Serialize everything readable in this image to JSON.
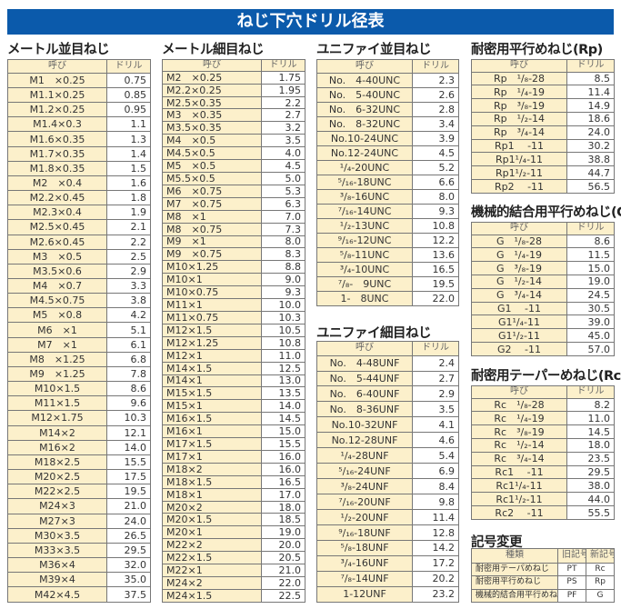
{
  "title": "ねじ下穴ドリル径表",
  "colors": {
    "title_bar": "#0b5aab",
    "name_cell": "#fcf0cb",
    "drill_cell": "#ffffff"
  },
  "tables": [
    {
      "heading": "メートル並目ねじ",
      "headers": [
        "呼び",
        "ドリル"
      ],
      "rows": [
        [
          "M1　×0.25",
          "0.75"
        ],
        [
          "M1.1×0.25",
          "0.85"
        ],
        [
          "M1.2×0.25",
          "0.95"
        ],
        [
          "M1.4×0.3",
          "1.1"
        ],
        [
          "M1.6×0.35",
          "1.3"
        ],
        [
          "M1.7×0.35",
          "1.4"
        ],
        [
          "M1.8×0.35",
          "1.5"
        ],
        [
          "M2　×0.4",
          "1.6"
        ],
        [
          "M2.2×0.45",
          "1.8"
        ],
        [
          "M2.3×0.4",
          "1.9"
        ],
        [
          "M2.5×0.45",
          "2.1"
        ],
        [
          "M2.6×0.45",
          "2.2"
        ],
        [
          "M3　×0.5",
          "2.5"
        ],
        [
          "M3.5×0.6",
          "2.9"
        ],
        [
          "M4　×0.7",
          "3.3"
        ],
        [
          "M4.5×0.75",
          "3.8"
        ],
        [
          "M5　×0.8",
          "4.2"
        ],
        [
          "M6　×1",
          "5.1"
        ],
        [
          "M7　×1",
          "6.1"
        ],
        [
          "M8　×1.25",
          "6.8"
        ],
        [
          "M9　×1.25",
          "7.8"
        ],
        [
          "M10×1.5",
          "8.6"
        ],
        [
          "M11×1.5",
          "9.6"
        ],
        [
          "M12×1.75",
          "10.3"
        ],
        [
          "M14×2",
          "12.1"
        ],
        [
          "M16×2",
          "14.0"
        ],
        [
          "M18×2.5",
          "15.5"
        ],
        [
          "M20×2.5",
          "17.5"
        ],
        [
          "M22×2.5",
          "19.5"
        ],
        [
          "M24×3",
          "21.0"
        ],
        [
          "M27×3",
          "24.0"
        ],
        [
          "M30×3.5",
          "26.5"
        ],
        [
          "M33×3.5",
          "29.5"
        ],
        [
          "M36×4",
          "32.0"
        ],
        [
          "M39×4",
          "35.0"
        ],
        [
          "M42×4.5",
          "37.5"
        ]
      ]
    },
    {
      "heading": "メートル細目ねじ",
      "headers": [
        "呼び",
        "ドリル"
      ],
      "rows": [
        [
          "M2　×0.25",
          "1.75"
        ],
        [
          "M2.2×0.25",
          "1.95"
        ],
        [
          "M2.5×0.35",
          "2.2"
        ],
        [
          "M3　×0.35",
          "2.7"
        ],
        [
          "M3.5×0.35",
          "3.2"
        ],
        [
          "M4　×0.5",
          "3.5"
        ],
        [
          "M4.5×0.5",
          "4.0"
        ],
        [
          "M5　×0.5",
          "4.5"
        ],
        [
          "M5.5×0.5",
          "5.0"
        ],
        [
          "M6　×0.75",
          "5.3"
        ],
        [
          "M7　×0.75",
          "6.3"
        ],
        [
          "M8　×1",
          "7.0"
        ],
        [
          "M8　×0.75",
          "7.3"
        ],
        [
          "M9　×1",
          "8.0"
        ],
        [
          "M9　×0.75",
          "8.3"
        ],
        [
          "M10×1.25",
          "8.8"
        ],
        [
          "M10×1",
          "9.0"
        ],
        [
          "M10×0.75",
          "9.3"
        ],
        [
          "M11×1",
          "10.0"
        ],
        [
          "M11×0.75",
          "10.3"
        ],
        [
          "M12×1.5",
          "10.5"
        ],
        [
          "M12×1.25",
          "10.8"
        ],
        [
          "M12×1",
          "11.0"
        ],
        [
          "M14×1.5",
          "12.5"
        ],
        [
          "M14×1",
          "13.0"
        ],
        [
          "M15×1.5",
          "13.5"
        ],
        [
          "M15×1",
          "14.0"
        ],
        [
          "M16×1.5",
          "14.5"
        ],
        [
          "M16×1",
          "15.0"
        ],
        [
          "M17×1.5",
          "15.5"
        ],
        [
          "M17×1",
          "16.0"
        ],
        [
          "M18×2",
          "16.0"
        ],
        [
          "M18×1.5",
          "16.5"
        ],
        [
          "M18×1",
          "17.0"
        ],
        [
          "M20×2",
          "18.0"
        ],
        [
          "M20×1.5",
          "18.5"
        ],
        [
          "M20×1",
          "19.0"
        ],
        [
          "M22×2",
          "20.0"
        ],
        [
          "M22×1.5",
          "20.5"
        ],
        [
          "M22×1",
          "21.0"
        ],
        [
          "M24×2",
          "22.0"
        ],
        [
          "M24×1.5",
          "22.5"
        ]
      ]
    },
    {
      "heading": "ユニファイ並目ねじ",
      "headers": [
        "呼び",
        "ドリル"
      ],
      "rows": [
        [
          "No.　4-40UNC",
          "2.3"
        ],
        [
          "No.　5-40UNC",
          "2.6"
        ],
        [
          "No.　6-32UNC",
          "2.8"
        ],
        [
          "No.　8-32UNC",
          "3.4"
        ],
        [
          "No.10-24UNC",
          "3.9"
        ],
        [
          "No.12-24UNC",
          "4.5"
        ],
        [
          "¹/₄-20UNC",
          "5.2"
        ],
        [
          "⁵/₁₆-18UNC",
          "6.6"
        ],
        [
          "³/₈-16UNC",
          "8.0"
        ],
        [
          "⁷/₁₆-14UNC",
          "9.3"
        ],
        [
          "¹/₂-13UNC",
          "10.8"
        ],
        [
          "⁹/₁₆-12UNC",
          "12.2"
        ],
        [
          "⁵/₈-11UNC",
          "13.6"
        ],
        [
          "³/₄-10UNC",
          "16.5"
        ],
        [
          "⁷/₈-　9UNC",
          "19.5"
        ],
        [
          "1-　8UNC",
          "22.0"
        ]
      ]
    },
    {
      "heading": "ユニファイ細目ねじ",
      "headers": [
        "呼び",
        "ドリル"
      ],
      "rows": [
        [
          "No.　4-48UNF",
          "2.4"
        ],
        [
          "No.　5-44UNF",
          "2.7"
        ],
        [
          "No.　6-40UNF",
          "2.9"
        ],
        [
          "No.　8-36UNF",
          "3.5"
        ],
        [
          "No.10-32UNF",
          "4.1"
        ],
        [
          "No.12-28UNF",
          "4.6"
        ],
        [
          "¹/₄-28UNF",
          "5.4"
        ],
        [
          "⁵/₁₆-24UNF",
          "6.9"
        ],
        [
          "³/₈-24UNF",
          "8.4"
        ],
        [
          "⁷/₁₆-20UNF",
          "9.8"
        ],
        [
          "¹/₂-20UNF",
          "11.4"
        ],
        [
          "⁹/₁₆-18UNF",
          "12.8"
        ],
        [
          "⁵/₈-18UNF",
          "14.2"
        ],
        [
          "³/₄-16UNF",
          "17.2"
        ],
        [
          "⁷/₈-14UNF",
          "20.2"
        ],
        [
          "1-12UNF",
          "23.2"
        ]
      ]
    },
    {
      "heading": "耐密用平行めねじ(Rp)",
      "headers": [
        "呼び",
        "ドリル"
      ],
      "rows": [
        [
          "Rp　¹/₈-28",
          "8.5"
        ],
        [
          "Rp　¹/₄-19",
          "11.4"
        ],
        [
          "Rp　³/₈-19",
          "14.9"
        ],
        [
          "Rp　¹/₂-14",
          "18.6"
        ],
        [
          "Rp　³/₄-14",
          "24.0"
        ],
        [
          "Rp1　 -11",
          "30.2"
        ],
        [
          "Rp1¹/₄-11",
          "38.8"
        ],
        [
          "Rp1¹/₂-11",
          "44.7"
        ],
        [
          "Rp2　 -11",
          "56.5"
        ]
      ]
    },
    {
      "heading": "機械的結合用平行めねじ(G)",
      "headers": [
        "呼び",
        "ドリル"
      ],
      "rows": [
        [
          "G　¹/₈-28",
          "8.6"
        ],
        [
          "G　¹/₄-19",
          "11.5"
        ],
        [
          "G　³/₈-19",
          "15.0"
        ],
        [
          "G　¹/₂-14",
          "19.0"
        ],
        [
          "G　³/₄-14",
          "24.5"
        ],
        [
          "G1　 -11",
          "30.5"
        ],
        [
          "G1¹/₄-11",
          "39.0"
        ],
        [
          "G1¹/₂-11",
          "45.0"
        ],
        [
          "G2　 -11",
          "57.0"
        ]
      ]
    },
    {
      "heading": "耐密用テーパーめねじ(Rc)",
      "headers": [
        "呼び",
        "ドリル"
      ],
      "rows": [
        [
          "Rc　¹/₈-28",
          "8.2"
        ],
        [
          "Rc　¹/₄-19",
          "11.0"
        ],
        [
          "Rc　³/₈-19",
          "14.5"
        ],
        [
          "Rc　¹/₂-14",
          "18.0"
        ],
        [
          "Rc　³/₄-14",
          "23.5"
        ],
        [
          "Rc1　 -11",
          "29.5"
        ],
        [
          "Rc1¹/₄-11",
          "38.0"
        ],
        [
          "Rc1¹/₂-11",
          "44.0"
        ],
        [
          "Rc2　 -11",
          "55.5"
        ]
      ]
    },
    {
      "heading": "記号変更",
      "headers": [
        "種類",
        "旧記号",
        "新記号"
      ],
      "rows": [
        [
          "耐密用テーパめねじ",
          "PT",
          "Rc"
        ],
        [
          "耐密用平行めねじ",
          "PS",
          "Rp"
        ],
        [
          "機械的結合用平行めねじ",
          "PF",
          "G"
        ]
      ]
    }
  ]
}
